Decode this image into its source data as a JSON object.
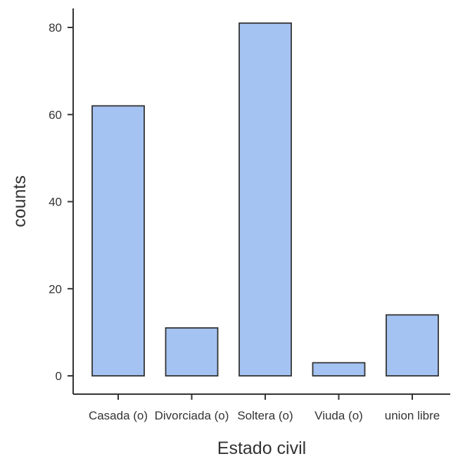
{
  "chart_data": {
    "type": "bar",
    "categories": [
      "Casada (o)",
      "Divorciada (o)",
      "Soltera (o)",
      "Viuda (o)",
      "union libre"
    ],
    "values": [
      62,
      11,
      81,
      3,
      14
    ],
    "title": "",
    "xlabel": "Estado civil",
    "ylabel": "counts",
    "ylim": [
      0,
      85
    ],
    "yticks": [
      0,
      20,
      40,
      60,
      80
    ],
    "grid": false,
    "legend": "none",
    "bar_color": "#a4c3f2",
    "edge_color": "#333333"
  }
}
